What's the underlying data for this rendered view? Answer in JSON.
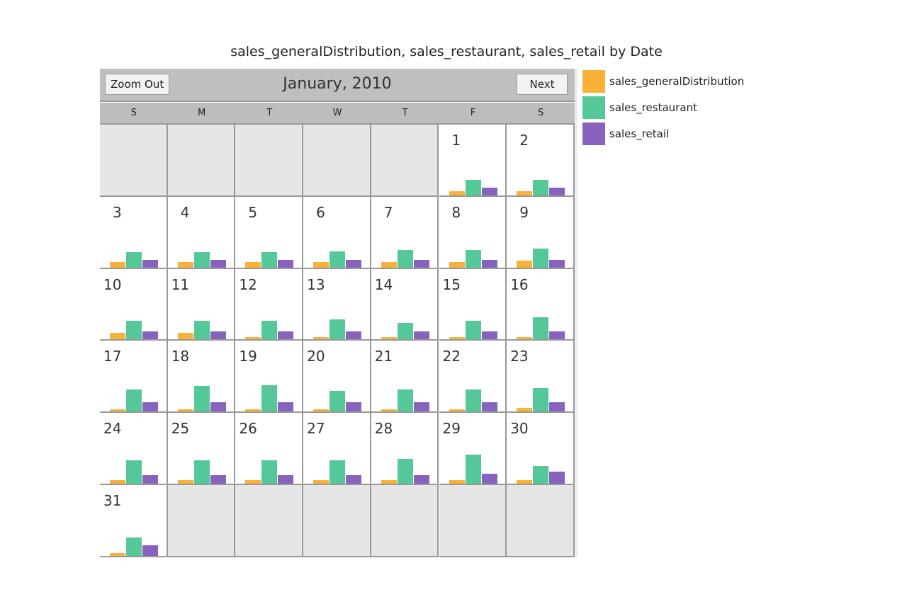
{
  "chart_data": {
    "type": "bar",
    "title": "sales_generalDistribution, sales_restaurant, sales_retail by Date",
    "layout": "calendar",
    "month_label": "January, 2010",
    "weekdays": [
      "S",
      "M",
      "T",
      "W",
      "T",
      "F",
      "S"
    ],
    "first_weekday_index": 5,
    "days": [
      1,
      2,
      3,
      4,
      5,
      6,
      7,
      8,
      9,
      10,
      11,
      12,
      13,
      14,
      15,
      16,
      17,
      18,
      19,
      20,
      21,
      22,
      23,
      24,
      25,
      26,
      27,
      28,
      29,
      30,
      31
    ],
    "series": [
      {
        "name": "sales_generalDistribution",
        "color": "#f9b13a",
        "values": [
          6,
          6,
          8,
          8,
          8,
          8,
          8,
          8,
          10,
          9,
          9,
          3,
          3,
          3,
          3,
          3,
          3,
          3,
          3,
          3,
          3,
          3,
          5,
          5,
          5,
          5,
          5,
          5,
          5,
          5,
          4
        ]
      },
      {
        "name": "sales_restaurant",
        "color": "#55c89a",
        "values": [
          22,
          22,
          22,
          22,
          22,
          23,
          25,
          25,
          27,
          26,
          26,
          26,
          28,
          23,
          26,
          31,
          31,
          36,
          37,
          29,
          31,
          31,
          33,
          33,
          33,
          33,
          33,
          35,
          41,
          25,
          26
        ]
      },
      {
        "name": "sales_retail",
        "color": "#8763be",
        "values": [
          11,
          11,
          11,
          11,
          11,
          11,
          11,
          11,
          11,
          11,
          11,
          11,
          11,
          11,
          11,
          11,
          13,
          13,
          13,
          13,
          13,
          13,
          13,
          12,
          12,
          12,
          12,
          12,
          14,
          17,
          15
        ]
      }
    ],
    "legend_position": "right"
  },
  "controls": {
    "zoom_out": "Zoom Out",
    "next": "Next"
  }
}
